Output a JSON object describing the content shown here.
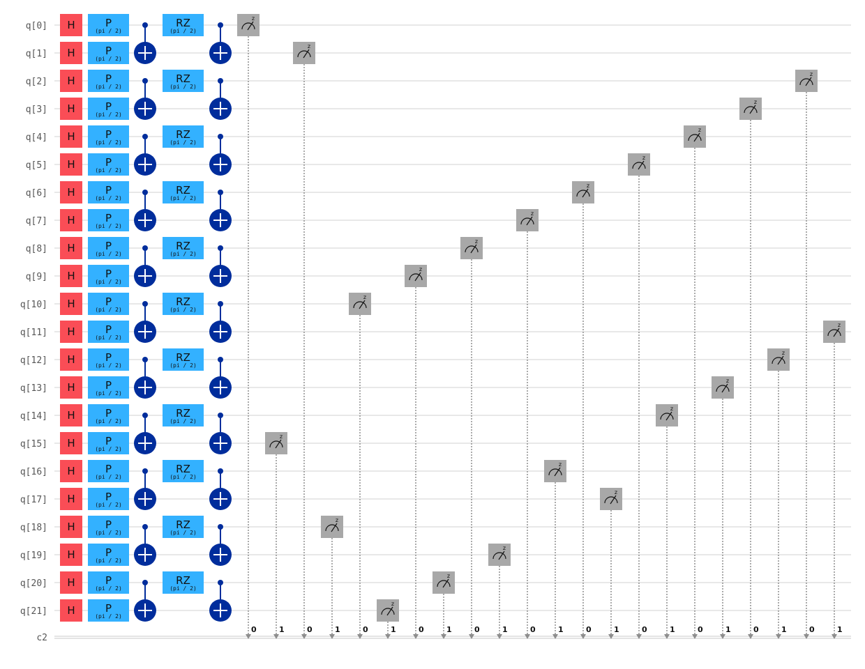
{
  "colors": {
    "hadamard": "#fa4d56",
    "phase": "#33b1ff",
    "cnot": "#002d9c",
    "measure": "#a8a8a8",
    "wire": "#e0e0e0",
    "classical_wire": "#c8c8c8",
    "measure_line": "#8d8d8d",
    "label": "#555555"
  },
  "qubit_labels": [
    "q[0]",
    "q[1]",
    "q[2]",
    "q[3]",
    "q[4]",
    "q[5]",
    "q[6]",
    "q[7]",
    "q[8]",
    "q[9]",
    "q[10]",
    "q[11]",
    "q[12]",
    "q[13]",
    "q[14]",
    "q[15]",
    "q[16]",
    "q[17]",
    "q[18]",
    "q[19]",
    "q[20]",
    "q[21]"
  ],
  "classical_label": "c2",
  "gates": {
    "h_label": "H",
    "p_label": "P",
    "p_param": "(pi / 2)",
    "rz_label": "RZ",
    "rz_param": "(pi / 2)",
    "measure_basis": "z"
  },
  "measure_order": [
    0,
    15,
    1,
    18,
    10,
    21,
    9,
    20,
    8,
    19,
    7,
    16,
    6,
    17,
    5,
    14,
    4,
    13,
    3,
    12,
    2,
    11
  ],
  "measure_bits": [
    "0",
    "1",
    "0",
    "1",
    "0",
    "1",
    "0",
    "1",
    "0",
    "1",
    "0",
    "1",
    "0",
    "1",
    "0",
    "1",
    "0",
    "1",
    "0",
    "1",
    "0",
    "1"
  ],
  "icons": {
    "measure": "meter-icon",
    "cnot_target": "plus-circle-icon",
    "control": "dot-icon"
  }
}
